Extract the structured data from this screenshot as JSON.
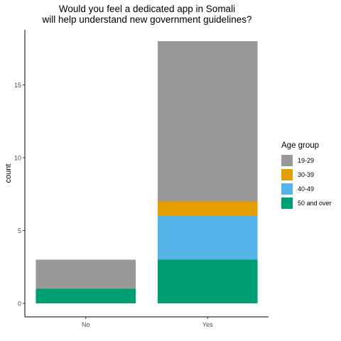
{
  "chart_data": {
    "type": "bar",
    "stacked": true,
    "title": [
      "Would you feel a dedicated app in Somali",
      "will help understand new government guidelines?"
    ],
    "xlabel": "",
    "ylabel": "count",
    "categories": [
      "No",
      "Yes"
    ],
    "ylim": [
      0,
      18.9
    ],
    "yticks": [
      0,
      5,
      10,
      15
    ],
    "series": [
      {
        "name": "19-29",
        "color": "#999999",
        "values": [
          2,
          11
        ]
      },
      {
        "name": "30-39",
        "color": "#E69F00",
        "values": [
          0,
          1
        ]
      },
      {
        "name": "40-49",
        "color": "#56B4E9",
        "values": [
          0,
          3
        ]
      },
      {
        "name": "50 and over",
        "color": "#009E73",
        "values": [
          1,
          3
        ]
      }
    ],
    "stack_order_bottom_to_top": [
      "50 and over",
      "40-49",
      "30-39",
      "19-29"
    ],
    "legend": {
      "title": "Age group",
      "position": "right"
    },
    "grid": false
  }
}
